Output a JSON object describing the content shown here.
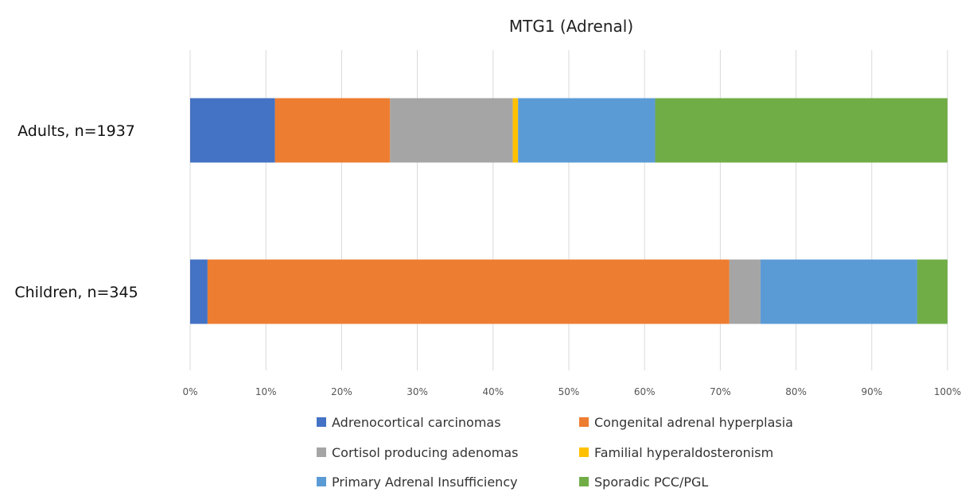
{
  "chart_data": {
    "type": "bar",
    "orientation": "horizontal",
    "stacked": "percent",
    "title": "MTG1 (Adrenal)",
    "categories": [
      "Adults, n=1937",
      "Children, n=345"
    ],
    "series": [
      {
        "name": "Adrenocortical carcinomas",
        "color": "#4472C4",
        "values": [
          11.2,
          2.3
        ]
      },
      {
        "name": "Congenital adrenal hyperplasia",
        "color": "#ED7D31",
        "values": [
          15.2,
          68.9
        ]
      },
      {
        "name": "Cortisol producing adenomas",
        "color": "#A5A5A5",
        "values": [
          16.2,
          4.1
        ]
      },
      {
        "name": "Familial hyperaldosteronism",
        "color": "#FFC000",
        "values": [
          0.7,
          0.0
        ]
      },
      {
        "name": "Primary Adrenal Insufficiency",
        "color": "#5B9BD5",
        "values": [
          18.1,
          20.7
        ]
      },
      {
        "name": "Sporadic PCC/PGL",
        "color": "#70AD47",
        "values": [
          38.6,
          4.0
        ]
      }
    ],
    "xlim": [
      0,
      100
    ],
    "xticks": [
      "0%",
      "10%",
      "20%",
      "30%",
      "40%",
      "50%",
      "60%",
      "70%",
      "80%",
      "90%",
      "100%"
    ],
    "xlabel": "",
    "ylabel": "",
    "grid": "vertical",
    "legend_position": "bottom"
  }
}
